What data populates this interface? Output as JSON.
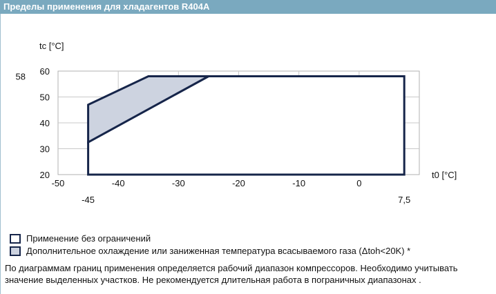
{
  "header": {
    "title": "Пределы применения для хладагентов R404A"
  },
  "chart_data": {
    "type": "area",
    "xlabel": "t0 [°C]",
    "ylabel": "tc [°C]",
    "xlim": [
      -50,
      10
    ],
    "ylim": [
      20,
      60
    ],
    "x_ticks": [
      -50,
      -40,
      -30,
      -20,
      -10,
      0
    ],
    "y_ticks": [
      20,
      30,
      40,
      50,
      60
    ],
    "grid": true,
    "extra_x_ticks": [
      {
        "value": -45,
        "label": "-45"
      },
      {
        "value": 7.5,
        "label": "7,5"
      }
    ],
    "extra_y_ticks": [
      {
        "value": 58,
        "label": "58"
      }
    ],
    "series": [
      {
        "name": "Применение без ограничений",
        "fill": "#ffffff",
        "stroke": "#16254a",
        "points": [
          [
            -45,
            20
          ],
          [
            -45,
            32.5
          ],
          [
            -25,
            58
          ],
          [
            7.5,
            58
          ],
          [
            7.5,
            20
          ]
        ]
      },
      {
        "name": "Дополнительное охлаждение или заниженная температура всасываемого газа (Δtoh<20K) *",
        "fill": "#cdd3e0",
        "stroke": "#16254a",
        "points": [
          [
            -45,
            32.5
          ],
          [
            -45,
            47
          ],
          [
            -35,
            58
          ],
          [
            -25,
            58
          ]
        ]
      }
    ]
  },
  "legend": {
    "items": [
      {
        "label": "Применение без ограничений",
        "color": "#ffffff"
      },
      {
        "label": "Дополнительное охлаждение или заниженная температура всасываемого газа (Δtoh<20K) *",
        "color": "#cdd3e0"
      }
    ]
  },
  "note": {
    "line1": "По диаграммам границ применения определяется рабочий диапазон компрессоров. Необходимо учитывать",
    "line2": "значение выделенных участков. Не рекомендуется длительная работа в пограничных диапазонах ."
  }
}
